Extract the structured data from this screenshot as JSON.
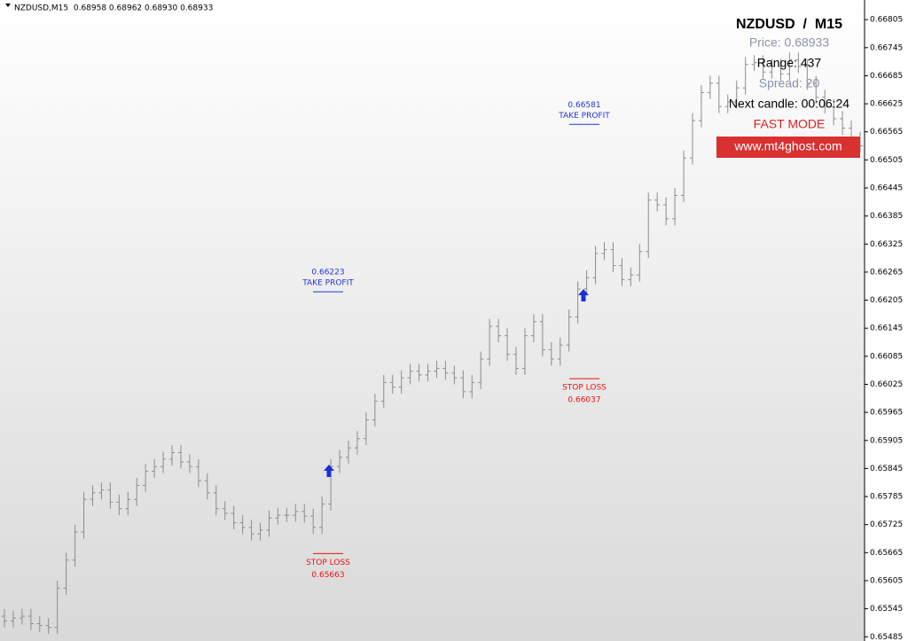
{
  "chart_data": {
    "type": "ohlc",
    "header": "NZDUSD,M15  0.68958 0.68962 0.68930 0.68933",
    "color": "#8c8c8c",
    "ylim": [
      0.65476,
      0.66847
    ],
    "yticks": [
      0.65485,
      0.65545,
      0.65605,
      0.65665,
      0.65725,
      0.65785,
      0.65845,
      0.65905,
      0.65965,
      0.66025,
      0.66085,
      0.66145,
      0.66205,
      0.66265,
      0.66325,
      0.66385,
      0.66445,
      0.66505,
      0.66565,
      0.66625,
      0.66685,
      0.66745,
      0.66805
    ],
    "open": [
      0.65529,
      0.65519,
      0.65525,
      0.65529,
      0.65513,
      0.65509,
      0.65505,
      0.65589,
      0.65649,
      0.65709,
      0.65779,
      0.65793,
      0.65799,
      0.65773,
      0.65759,
      0.65779,
      0.65809,
      0.65839,
      0.65849,
      0.65865,
      0.65879,
      0.65859,
      0.65849,
      0.65819,
      0.65793,
      0.65759,
      0.65749,
      0.65729,
      0.65719,
      0.65705,
      0.65713,
      0.65739,
      0.65745,
      0.65745,
      0.65753,
      0.65743,
      0.65719,
      0.65769,
      0.65849,
      0.65869,
      0.65889,
      0.65909,
      0.65949,
      0.65989,
      0.66029,
      0.66019,
      0.66039,
      0.66053,
      0.66045,
      0.66053,
      0.66059,
      0.66049,
      0.66039,
      0.66009,
      0.66029,
      0.66079,
      0.66149,
      0.66129,
      0.66089,
      0.66059,
      0.66129,
      0.66159,
      0.66099,
      0.66079,
      0.66109,
      0.66169,
      0.66229,
      0.66253,
      0.66305,
      0.66313,
      0.66279,
      0.66249,
      0.66259,
      0.66309,
      0.66419,
      0.66409,
      0.66379,
      0.66429,
      0.66509,
      0.66589,
      0.66649,
      0.66669,
      0.66619,
      0.66629,
      0.66659,
      0.66709,
      0.66713,
      0.66693,
      0.66705,
      0.66689,
      0.66719,
      0.66705,
      0.66669,
      0.66639,
      0.66619,
      0.66593,
      0.66573,
      0.66549
    ],
    "high": [
      0.65545,
      0.65541,
      0.65545,
      0.65545,
      0.65529,
      0.65525,
      0.65605,
      0.65665,
      0.65725,
      0.65795,
      0.65809,
      0.65815,
      0.65815,
      0.65789,
      0.65795,
      0.65825,
      0.65855,
      0.65865,
      0.65881,
      0.65895,
      0.65895,
      0.65875,
      0.65865,
      0.65835,
      0.65809,
      0.65775,
      0.65765,
      0.65745,
      0.65735,
      0.65729,
      0.65755,
      0.65761,
      0.65761,
      0.65769,
      0.65769,
      0.65759,
      0.65785,
      0.65865,
      0.65885,
      0.65905,
      0.65925,
      0.65965,
      0.66005,
      0.66045,
      0.66045,
      0.66055,
      0.66069,
      0.66069,
      0.66069,
      0.66075,
      0.66075,
      0.66065,
      0.66055,
      0.66045,
      0.66095,
      0.66165,
      0.66165,
      0.66145,
      0.66105,
      0.66145,
      0.66175,
      0.66175,
      0.66115,
      0.66125,
      0.66185,
      0.66245,
      0.66269,
      0.66321,
      0.66329,
      0.66329,
      0.66295,
      0.66275,
      0.66325,
      0.66435,
      0.66435,
      0.66425,
      0.66445,
      0.66525,
      0.66605,
      0.66665,
      0.66685,
      0.66685,
      0.66645,
      0.66675,
      0.66725,
      0.66729,
      0.66729,
      0.66721,
      0.66721,
      0.66735,
      0.66735,
      0.66721,
      0.66685,
      0.66655,
      0.66635,
      0.66609,
      0.66589,
      0.66565
    ],
    "low": [
      0.65505,
      0.65505,
      0.65511,
      0.65499,
      0.65495,
      0.65491,
      0.65491,
      0.65575,
      0.65635,
      0.65695,
      0.65765,
      0.65779,
      0.65759,
      0.65745,
      0.65745,
      0.65765,
      0.65795,
      0.65825,
      0.65835,
      0.65851,
      0.65845,
      0.65835,
      0.65805,
      0.65779,
      0.65745,
      0.65735,
      0.65715,
      0.65705,
      0.65691,
      0.65691,
      0.65699,
      0.65725,
      0.65731,
      0.65731,
      0.65729,
      0.65705,
      0.65705,
      0.65755,
      0.65835,
      0.65855,
      0.65875,
      0.65895,
      0.65935,
      0.65975,
      0.66005,
      0.66005,
      0.66025,
      0.66031,
      0.66031,
      0.66039,
      0.66035,
      0.66025,
      0.65995,
      0.65995,
      0.66015,
      0.66065,
      0.66115,
      0.66075,
      0.66045,
      0.66045,
      0.66115,
      0.66085,
      0.66065,
      0.66065,
      0.66095,
      0.66155,
      0.66215,
      0.66239,
      0.66291,
      0.66265,
      0.66235,
      0.66235,
      0.66245,
      0.66295,
      0.66395,
      0.66365,
      0.66365,
      0.66415,
      0.66495,
      0.66575,
      0.66635,
      0.66605,
      0.66605,
      0.66615,
      0.66645,
      0.66695,
      0.66679,
      0.66679,
      0.66675,
      0.66675,
      0.66691,
      0.66655,
      0.66625,
      0.66605,
      0.66579,
      0.66559,
      0.66535,
      0.66521
    ],
    "close": [
      0.65519,
      0.65525,
      0.65529,
      0.65513,
      0.65509,
      0.65505,
      0.65589,
      0.65649,
      0.65709,
      0.65779,
      0.65793,
      0.65799,
      0.65773,
      0.65759,
      0.65779,
      0.65809,
      0.65839,
      0.65849,
      0.65865,
      0.65879,
      0.65859,
      0.65849,
      0.65819,
      0.65793,
      0.65759,
      0.65749,
      0.65729,
      0.65719,
      0.65705,
      0.65713,
      0.65739,
      0.65745,
      0.65745,
      0.65753,
      0.65743,
      0.65719,
      0.65769,
      0.65849,
      0.65869,
      0.65889,
      0.65909,
      0.65949,
      0.65989,
      0.66029,
      0.66019,
      0.66039,
      0.66053,
      0.66045,
      0.66053,
      0.66059,
      0.66049,
      0.66039,
      0.66009,
      0.66029,
      0.66079,
      0.66149,
      0.66129,
      0.66089,
      0.66059,
      0.66129,
      0.66159,
      0.66099,
      0.66079,
      0.66109,
      0.66169,
      0.66229,
      0.66253,
      0.66305,
      0.66313,
      0.66279,
      0.66249,
      0.66259,
      0.66309,
      0.66419,
      0.66409,
      0.66379,
      0.66429,
      0.66509,
      0.66589,
      0.66649,
      0.66669,
      0.66619,
      0.66629,
      0.66659,
      0.66709,
      0.66713,
      0.66693,
      0.66705,
      0.66689,
      0.66719,
      0.66705,
      0.66669,
      0.66639,
      0.66619,
      0.66593,
      0.66573,
      0.66549,
      0.66535
    ],
    "annotations": [
      {
        "label": "TAKE PROFIT",
        "price": 0.66223,
        "color": "#2233dd"
      },
      {
        "label": "STOP LOSS",
        "price": 0.65663,
        "color": "#ee1111"
      },
      {
        "label": "TAKE PROFIT",
        "price": 0.66581,
        "color": "#2233dd"
      },
      {
        "label": "STOP LOSS",
        "price": 0.66037,
        "color": "#ee1111"
      }
    ],
    "info_panel": {
      "title": "NZDUSD  /  M15",
      "price": "Price: 0.68933",
      "range": "Range: 437",
      "spread": "Spread: 20",
      "next_candle": "Next candle: 00:06:24",
      "mode": "FAST MODE",
      "website": "www.mt4ghost.com"
    }
  }
}
